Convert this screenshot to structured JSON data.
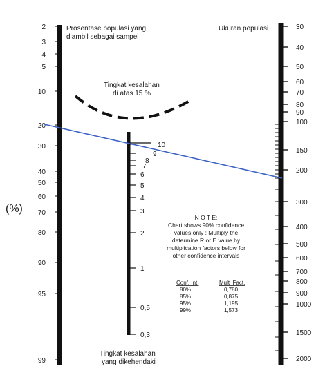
{
  "left_scale": {
    "title_line1": "Prosentase populasi yang",
    "title_line2": "diambil sebagai sampel",
    "unit_label": "(%)",
    "ticks": [
      "2",
      "3",
      "4",
      "5",
      "10",
      "20",
      "30",
      "40",
      "50",
      "60",
      "70",
      "80",
      "90",
      "95",
      "99"
    ]
  },
  "right_scale": {
    "title": "Ukuran populasi",
    "ticks": [
      "30",
      "40",
      "50",
      "60",
      "70",
      "80",
      "90",
      "100",
      "150",
      "200",
      "300",
      "400",
      "500",
      "600",
      "700",
      "800",
      "900",
      "1000",
      "1500",
      "2000"
    ]
  },
  "middle_scale": {
    "title_top_line1": "Tingkat kesalahan",
    "title_top_line2": "di atas 15 %",
    "title_bottom_line1": "Tingkat kesalahan",
    "title_bottom_line2": "yang dikehendaki",
    "ticks": [
      "10",
      "9",
      "8",
      "7",
      "6",
      "5",
      "4",
      "3",
      "2",
      "1",
      "0,5",
      "0,3"
    ]
  },
  "note": {
    "heading": "N O T E:",
    "lines": [
      "Chart shows 90% confidence",
      "values only : Multiply the",
      "determine R or E value by",
      "multiplication factors below for",
      "other confidence intervals"
    ]
  },
  "confidence_table": {
    "header_conf": "Conf. Int.",
    "header_mult": "Mult .Fact.",
    "rows": [
      {
        "conf": "80%",
        "mult": "0,780"
      },
      {
        "conf": "85%",
        "mult": "0,875"
      },
      {
        "conf": "95%",
        "mult": "1,195"
      },
      {
        "conf": "99%",
        "mult": "1,573"
      }
    ]
  },
  "reading_line": {
    "color": "#3b62c4",
    "from_left_scale": "20",
    "to_right_scale": "200"
  }
}
